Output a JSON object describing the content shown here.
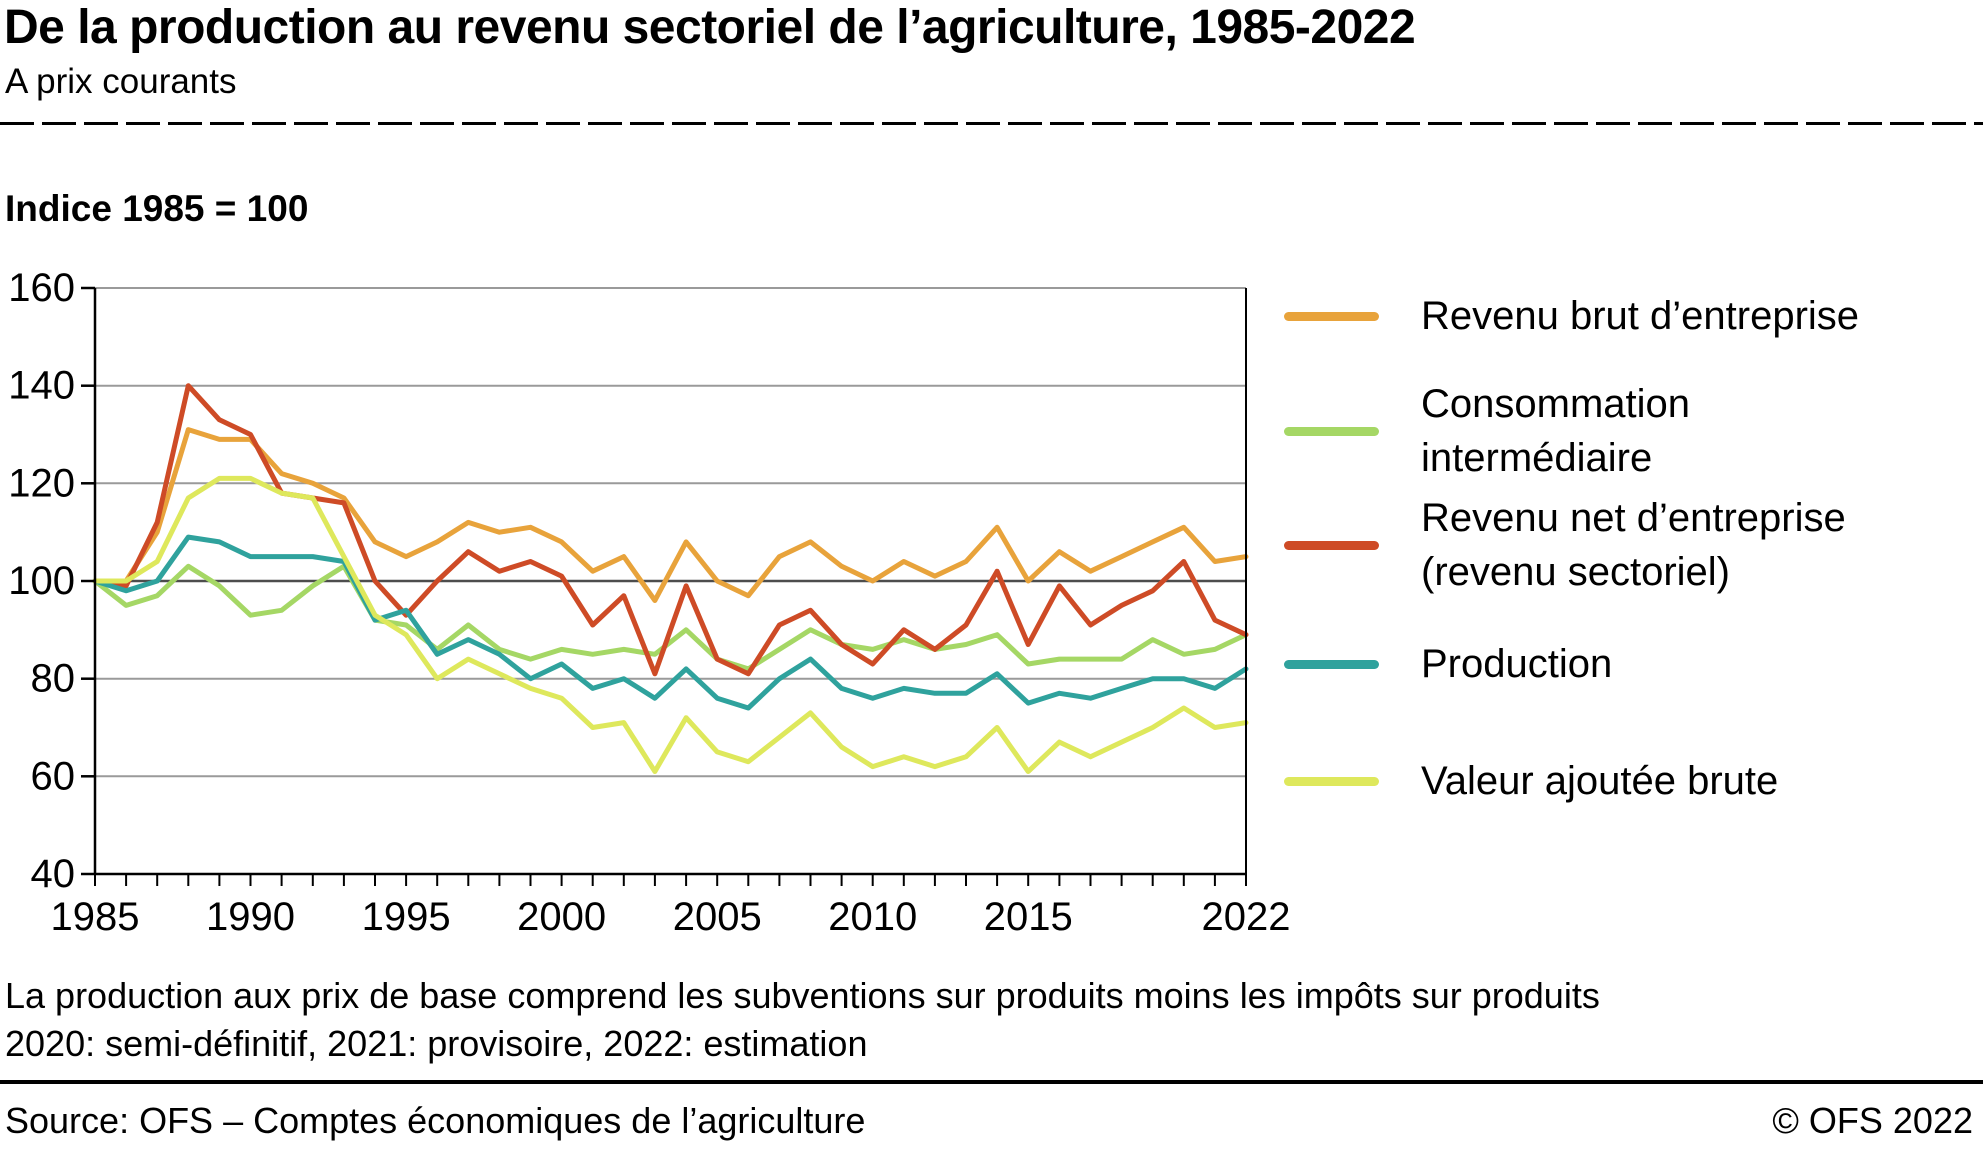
{
  "header": {
    "title": "De la production au revenu sectoriel de l’agriculture, 1985-2022",
    "subtitle": "A prix courants"
  },
  "chart_data": {
    "type": "line",
    "title": "De la production au revenu sectoriel de l’agriculture, 1985-2022",
    "subtitle": "A prix courants",
    "index_label": "Indice 1985 = 100",
    "ylim": [
      40,
      160
    ],
    "y_ticks": [
      40,
      60,
      80,
      100,
      120,
      140,
      160
    ],
    "emphasized_gridline": 100,
    "grid": "horizontal",
    "legend_position": "right",
    "x": [
      1985,
      1986,
      1987,
      1988,
      1989,
      1990,
      1991,
      1992,
      1993,
      1994,
      1995,
      1996,
      1997,
      1998,
      1999,
      2000,
      2001,
      2002,
      2003,
      2004,
      2005,
      2006,
      2007,
      2008,
      2009,
      2010,
      2011,
      2012,
      2013,
      2014,
      2015,
      2016,
      2017,
      2018,
      2019,
      2020,
      2021,
      2022
    ],
    "x_tick_labels": [
      1985,
      1990,
      1995,
      2000,
      2005,
      2010,
      2015,
      2022
    ],
    "series": [
      {
        "name": "Revenu brut d’entreprise",
        "color": "#E8A33B",
        "values": [
          100,
          100,
          110,
          131,
          129,
          129,
          122,
          120,
          117,
          108,
          105,
          108,
          112,
          110,
          111,
          108,
          102,
          105,
          96,
          108,
          100,
          97,
          105,
          108,
          103,
          100,
          104,
          101,
          104,
          111,
          100,
          106,
          102,
          105,
          108,
          111,
          104,
          105
        ]
      },
      {
        "name": "Consommation intermédiaire",
        "color": "#A5D765",
        "values": [
          100,
          95,
          97,
          103,
          99,
          93,
          94,
          99,
          103,
          92,
          91,
          86,
          91,
          86,
          84,
          86,
          85,
          86,
          85,
          90,
          84,
          82,
          86,
          90,
          87,
          86,
          88,
          86,
          87,
          89,
          83,
          84,
          84,
          84,
          88,
          85,
          86,
          89
        ]
      },
      {
        "name": "Revenu net d’entreprise (revenu sectoriel)",
        "color": "#CE4B26",
        "values": [
          100,
          99,
          112,
          140,
          133,
          130,
          118,
          117,
          116,
          100,
          93,
          100,
          106,
          102,
          104,
          101,
          91,
          97,
          81,
          99,
          84,
          81,
          91,
          94,
          87,
          83,
          90,
          86,
          91,
          102,
          87,
          99,
          91,
          95,
          98,
          104,
          92,
          89
        ]
      },
      {
        "name": "Production",
        "color": "#2FA29D",
        "values": [
          100,
          98,
          100,
          109,
          108,
          105,
          105,
          105,
          104,
          92,
          94,
          85,
          88,
          85,
          80,
          83,
          78,
          80,
          76,
          82,
          76,
          74,
          80,
          84,
          78,
          76,
          78,
          77,
          77,
          81,
          75,
          77,
          76,
          78,
          80,
          80,
          78,
          82
        ]
      },
      {
        "name": "Valeur ajoutée brute",
        "color": "#DEE85C",
        "values": [
          100,
          100,
          104,
          117,
          121,
          121,
          118,
          117,
          105,
          93,
          89,
          80,
          84,
          81,
          78,
          76,
          70,
          71,
          61,
          72,
          65,
          63,
          68,
          73,
          66,
          62,
          64,
          62,
          64,
          70,
          61,
          67,
          64,
          67,
          70,
          74,
          70,
          71
        ]
      }
    ]
  },
  "legend": {
    "items": [
      {
        "lines": [
          "Revenu brut d’entreprise"
        ],
        "color": "#E8A33B"
      },
      {
        "lines": [
          "Consommation",
          "intermédiaire"
        ],
        "color": "#A5D765"
      },
      {
        "lines": [
          "Revenu net d’entreprise",
          "(revenu sectoriel)"
        ],
        "color": "#CE4B26"
      },
      {
        "lines": [
          "Production"
        ],
        "color": "#2FA29D"
      },
      {
        "lines": [
          "Valeur ajoutée brute"
        ],
        "color": "#DEE85C"
      }
    ]
  },
  "notes": {
    "line1": "La production aux prix de base comprend les subventions sur produits moins les impôts sur produits",
    "line2": "2020: semi-définitif, 2021: provisoire, 2022: estimation"
  },
  "footer": {
    "source": "Source: OFS – Comptes économiques de l’agriculture",
    "copyright": "© OFS 2022"
  },
  "colors": {
    "gridline": "#9A9A9A",
    "gridline_emphasis": "#4D4D4D",
    "axis": "#000000"
  }
}
